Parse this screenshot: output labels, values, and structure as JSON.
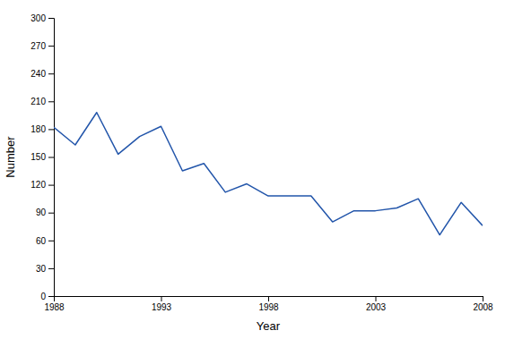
{
  "chart_data": {
    "type": "line",
    "x": [
      1988,
      1989,
      1990,
      1991,
      1992,
      1993,
      1994,
      1995,
      1996,
      1997,
      1998,
      1999,
      2000,
      2001,
      2002,
      2003,
      2004,
      2005,
      2006,
      2007,
      2008
    ],
    "values": [
      182,
      163,
      198,
      153,
      172,
      183,
      135,
      143,
      112,
      121,
      108,
      108,
      108,
      80,
      92,
      92,
      95,
      105,
      66,
      101,
      76
    ],
    "color": "#2255aa",
    "xlabel": "Year",
    "ylabel": "Number",
    "xlim": [
      1988,
      2008
    ],
    "ylim": [
      0,
      300
    ],
    "xticks": [
      1988,
      1993,
      1998,
      2003,
      2008
    ],
    "yticks": [
      0,
      30,
      60,
      90,
      120,
      150,
      180,
      210,
      240,
      270,
      300
    ]
  }
}
